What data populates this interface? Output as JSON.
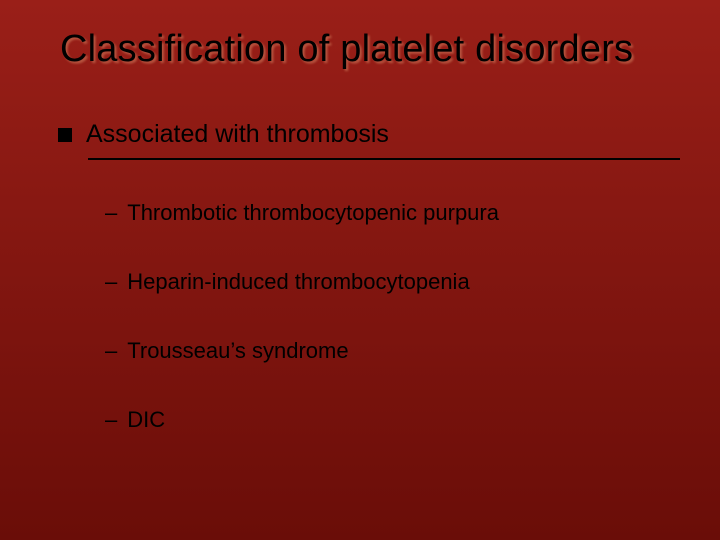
{
  "slide": {
    "title": "Classification of platelet disorders",
    "level1": {
      "text": "Associated with thrombosis"
    },
    "level2": [
      {
        "text": "Thrombotic thrombocytopenic purpura"
      },
      {
        "text": "Heparin-induced thrombocytopenia"
      },
      {
        "text": "Trousseau’s syndrome"
      },
      {
        "text": "DIC"
      }
    ],
    "style": {
      "background_top": "#9a1f18",
      "background_bottom": "#6a0d08",
      "title_color": "#000000",
      "title_fontsize": 38,
      "body_color": "#000000",
      "lvl1_fontsize": 25,
      "lvl2_fontsize": 22,
      "bullet_shape": "square",
      "bullet_color": "#000000",
      "dash_char": "–",
      "underline_color": "#000000"
    }
  }
}
